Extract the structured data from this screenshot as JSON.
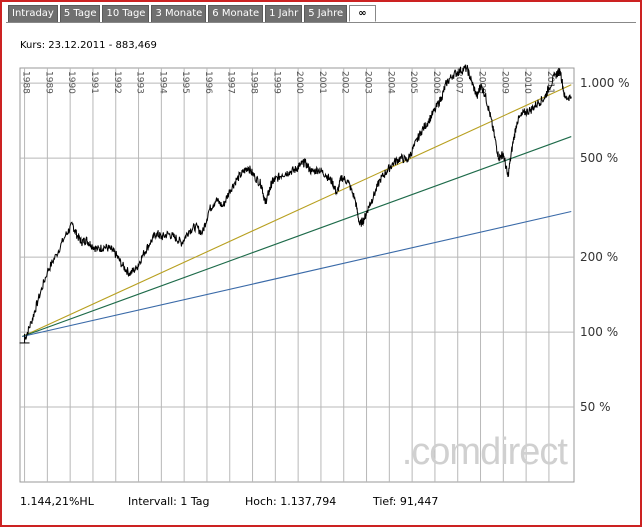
{
  "tabs": [
    {
      "label": "Intraday"
    },
    {
      "label": "5 Tage"
    },
    {
      "label": "10 Tage"
    },
    {
      "label": "3 Monate"
    },
    {
      "label": "6 Monate"
    },
    {
      "label": "1 Jahr"
    },
    {
      "label": "5 Jahre"
    },
    {
      "label": "∞",
      "active": true
    }
  ],
  "header": {
    "kurs": "Kurs: 23.12.2011 - 883,469"
  },
  "watermark": ".comdirect",
  "footer": {
    "performance": "1.144,21%HL",
    "interval": "Intervall: 1 Tag",
    "high": "Hoch: 1.137,794",
    "low": "Tief:  91,447"
  },
  "colors": {
    "price_line": "#000000",
    "trend_1": "#b8a020",
    "trend_2": "#1e6b4a",
    "trend_3": "#3a6aa8",
    "grid": "#b8b8b8",
    "border": "#cc2222",
    "tab_bg": "#707070"
  },
  "chart_data": {
    "type": "line",
    "y_scale": "log",
    "y_unit": "%",
    "ylim": [
      25,
      1150
    ],
    "xlim": [
      1987.8,
      2012.1
    ],
    "x_tick_labels": [
      "1988",
      "1989",
      "1990",
      "1991",
      "1992",
      "1993",
      "1994",
      "1995",
      "1996",
      "1997",
      "1998",
      "1999",
      "2000",
      "2001",
      "2002",
      "2003",
      "2004",
      "2005",
      "2006",
      "2007",
      "2008",
      "2009",
      "2010",
      "2011"
    ],
    "y_ticks": [
      {
        "value": 1000,
        "label": "1.000 %"
      },
      {
        "value": 500,
        "label": "500 %"
      },
      {
        "value": 200,
        "label": "200 %"
      },
      {
        "value": 100,
        "label": "100 %"
      },
      {
        "value": 50,
        "label": "50 %"
      }
    ],
    "grid": true,
    "series": [
      {
        "x": [
          1988.0,
          1988.3,
          1988.6,
          1989.0,
          1989.4,
          1989.8,
          1990.1,
          1990.3,
          1990.5,
          1990.7,
          1990.9,
          1991.2,
          1991.5,
          1991.8,
          1992.0,
          1992.3,
          1992.6,
          1992.9,
          1993.2,
          1993.5,
          1993.8,
          1994.0,
          1994.3,
          1994.6,
          1994.9,
          1995.2,
          1995.5,
          1995.8,
          1996.1,
          1996.4,
          1996.7,
          1997.0,
          1997.3,
          1997.6,
          1997.8,
          1998.1,
          1998.4,
          1998.55,
          1998.7,
          1998.85,
          1999.0,
          1999.3,
          1999.6,
          1999.9,
          2000.1,
          2000.3,
          2000.6,
          2000.9,
          2001.2,
          2001.5,
          2001.7,
          2001.9,
          2002.2,
          2002.5,
          2002.7,
          2002.9,
          2003.1,
          2003.3,
          2003.6,
          2003.9,
          2004.2,
          2004.5,
          2004.8,
          2005.1,
          2005.4,
          2005.7,
          2006.0,
          2006.3,
          2006.5,
          2006.8,
          2007.1,
          2007.4,
          2007.6,
          2007.85,
          2008.0,
          2008.2,
          2008.4,
          2008.6,
          2008.8,
          2009.0,
          2009.2,
          2009.4,
          2009.6,
          2009.9,
          2010.2,
          2010.5,
          2010.8,
          2011.0,
          2011.3,
          2011.5,
          2011.7,
          2011.98
        ],
        "y": [
          93,
          110,
          135,
          175,
          205,
          245,
          270,
          245,
          230,
          235,
          225,
          215,
          220,
          215,
          205,
          185,
          172,
          180,
          205,
          228,
          250,
          240,
          248,
          240,
          228,
          255,
          265,
          250,
          310,
          340,
          320,
          370,
          410,
          440,
          460,
          420,
          390,
          330,
          360,
          400,
          410,
          430,
          440,
          450,
          470,
          480,
          440,
          450,
          430,
          400,
          360,
          420,
          400,
          340,
          270,
          285,
          320,
          350,
          410,
          445,
          480,
          500,
          490,
          560,
          640,
          700,
          780,
          880,
          1000,
          1080,
          1120,
          1150,
          1020,
          880,
          980,
          900,
          760,
          620,
          500,
          520,
          420,
          560,
          700,
          760,
          780,
          830,
          870,
          960,
          1080,
          1120,
          870,
          883
        ]
      },
      {
        "name": "",
        "x": [
          1987.9,
          2011.98
        ],
        "y": [
          96,
          985
        ]
      },
      {
        "name": "",
        "x": [
          1987.9,
          2011.98
        ],
        "y": [
          96,
          610
        ]
      },
      {
        "name": "",
        "x": [
          1987.9,
          2011.98
        ],
        "y": [
          96,
          305
        ]
      }
    ]
  }
}
